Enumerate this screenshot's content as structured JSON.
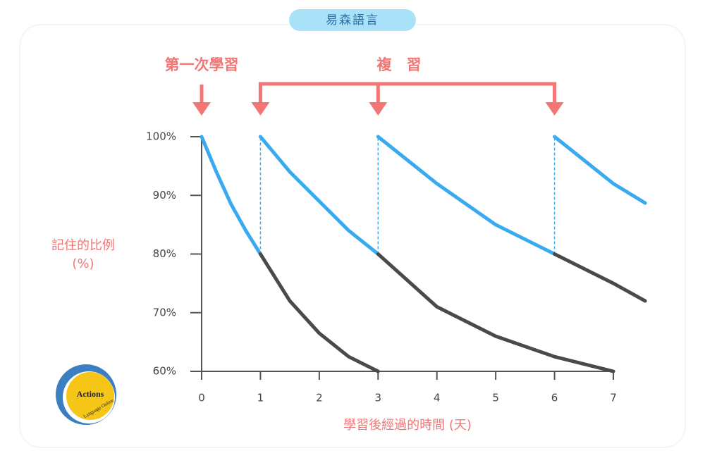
{
  "header": {
    "title": "易森語言"
  },
  "logo": {
    "name": "Actions",
    "tagline": "Language Online"
  },
  "chart_data": {
    "type": "line",
    "y_label": [
      "記住的比例",
      "(%)"
    ],
    "x_label": "學習後經過的時間 (天)",
    "annotations": {
      "first_study": "第一次學習",
      "review": "複　習"
    },
    "first_study_day": 0,
    "review_days": [
      1,
      3,
      6
    ],
    "xlim": [
      0,
      7
    ],
    "ylim": [
      60,
      100
    ],
    "xticks": [
      0,
      1,
      2,
      3,
      4,
      5,
      6,
      7
    ],
    "yticks": [
      {
        "value": 60,
        "label": "60%"
      },
      {
        "value": 70,
        "label": "70%"
      },
      {
        "value": 80,
        "label": "80%"
      },
      {
        "value": 90,
        "label": "90%"
      },
      {
        "value": 100,
        "label": "100%"
      }
    ],
    "series": [
      {
        "color": "#3aaaf0",
        "x": [
          0,
          0.25,
          0.5,
          0.75,
          1
        ],
        "values": [
          100,
          94,
          88.5,
          84,
          80
        ]
      },
      {
        "color": "#4a4a4a",
        "x": [
          1,
          1.5,
          2,
          2.5,
          3
        ],
        "values": [
          80,
          72,
          66.5,
          62.5,
          60
        ]
      },
      {
        "color": "#3aaaf0",
        "x": [
          1,
          1.5,
          2,
          2.5,
          3
        ],
        "values": [
          100,
          94,
          89,
          84,
          80
        ]
      },
      {
        "color": "#4a4a4a",
        "x": [
          3,
          4,
          5,
          6,
          7
        ],
        "values": [
          80,
          71,
          66,
          62.5,
          60
        ]
      },
      {
        "color": "#3aaaf0",
        "x": [
          3,
          4,
          5,
          6
        ],
        "values": [
          100,
          92,
          85,
          80
        ]
      },
      {
        "color": "#4a4a4a",
        "x": [
          6,
          7,
          7.54
        ],
        "values": [
          80,
          75,
          72
        ]
      },
      {
        "color": "#3aaaf0",
        "x": [
          6,
          7,
          7.54
        ],
        "values": [
          100,
          92,
          88.7
        ]
      }
    ],
    "review_marker_color": "#f27676"
  }
}
